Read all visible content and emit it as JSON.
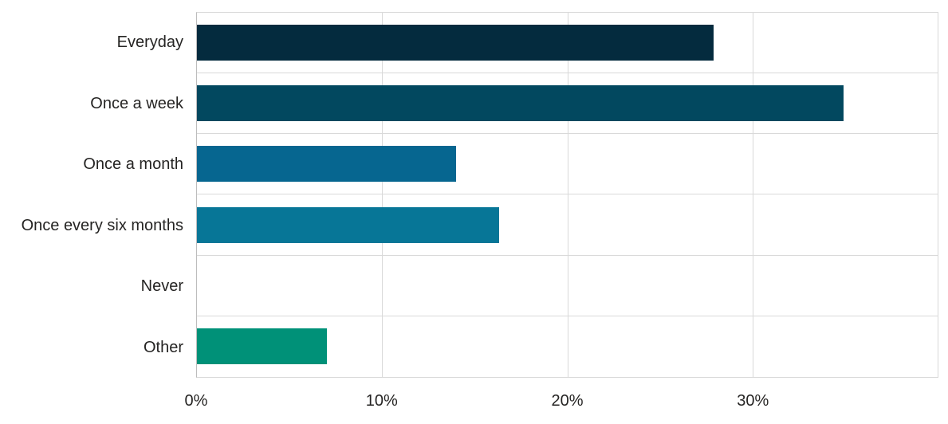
{
  "page": {
    "background": "#ffffff",
    "text_color": "#252423",
    "gridline_color": "#d9d9d9",
    "axis_line_color": "#bdbdbd"
  },
  "chart_data": {
    "type": "bar",
    "orientation": "horizontal",
    "title": "",
    "xlabel": "",
    "ylabel": "",
    "categories": [
      "Everyday",
      "Once a week",
      "Once a month",
      "Once every six months",
      "Never",
      "Other"
    ],
    "values": [
      27.9,
      34.9,
      14.0,
      16.3,
      0,
      7.0
    ],
    "colors": [
      "#042b3e",
      "#02485f",
      "#066690",
      "#077697",
      null,
      "#009178"
    ],
    "xlim": [
      0,
      40
    ],
    "grid": true,
    "legend": "none",
    "x_axis": {
      "ticks": [
        {
          "label": "0%",
          "value": 0
        },
        {
          "label": "10%",
          "value": 10
        },
        {
          "label": "20%",
          "value": 20
        },
        {
          "label": "30%",
          "value": 30
        }
      ]
    }
  }
}
